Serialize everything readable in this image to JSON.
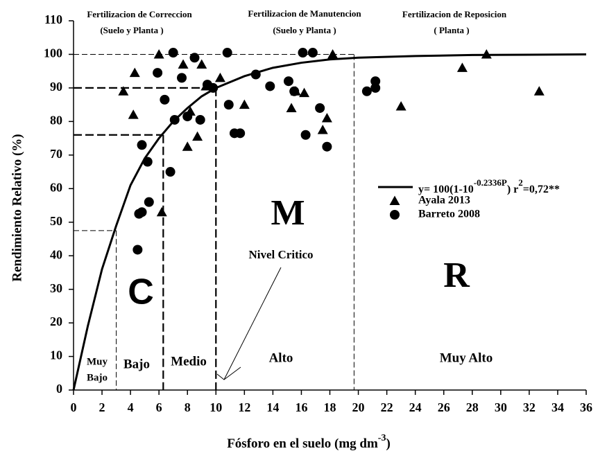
{
  "chart_data": {
    "type": "scatter",
    "y_label": "Rendimiento Relativo (%)",
    "x_label": {
      "main": "Fósforo en el suelo  (mg dm",
      "exp": "-3",
      "close": ")"
    },
    "xlim": [
      0,
      36
    ],
    "xticks": [
      0,
      2,
      4,
      6,
      8,
      10,
      12,
      14,
      16,
      18,
      20,
      22,
      24,
      26,
      28,
      30,
      32,
      34,
      36
    ],
    "ylim": [
      0,
      110
    ],
    "yticks": [
      0,
      10,
      20,
      30,
      40,
      50,
      60,
      70,
      80,
      90,
      100,
      110
    ],
    "grid": false,
    "series": [
      {
        "name": "Ayala 2013",
        "marker": "triangle",
        "color": "#000000",
        "x": [
          3.5,
          4.3,
          4.2,
          6,
          6.2,
          7.7,
          8,
          8.2,
          8.7,
          9,
          9.3,
          10.3,
          12,
          15.3,
          15.6,
          16.2,
          17.5,
          17.8,
          18.2,
          23,
          27.3,
          29,
          32.7
        ],
        "values": [
          89,
          94.5,
          82,
          100,
          53,
          97,
          72.5,
          83,
          75.5,
          97,
          90.5,
          93,
          85,
          84,
          89,
          88.5,
          77.5,
          81,
          100,
          84.5,
          96,
          100,
          89
        ]
      },
      {
        "name": "Barreto 2008",
        "marker": "circle",
        "color": "#000000",
        "x": [
          4.5,
          4.6,
          4.8,
          4.8,
          5.2,
          5.3,
          5.9,
          6.4,
          6.8,
          7.0,
          7.1,
          7.6,
          8.0,
          8.5,
          8.9,
          9.4,
          9.8,
          10.8,
          10.9,
          11.3,
          11.7,
          12.8,
          13.8,
          15.1,
          15.5,
          16.1,
          16.3,
          16.8,
          17.3,
          17.8,
          20.6,
          21.2,
          21.2
        ],
        "values": [
          41.8,
          52.5,
          53,
          73,
          68,
          56,
          94.5,
          86.5,
          65,
          100.5,
          80.5,
          93,
          81.5,
          99,
          80.5,
          91,
          90,
          100.5,
          85,
          76.5,
          76.5,
          94,
          90.5,
          92,
          89,
          100.5,
          76,
          100.5,
          84,
          72.5,
          89,
          92,
          90
        ]
      }
    ],
    "fit": {
      "color": "#000000",
      "legend": {
        "base": "y= 100(1-10",
        "exp": "-0.2336P",
        "r": ") r",
        "r_exp": "2",
        "rest": "=0,72**"
      },
      "x": [
        0,
        1,
        2,
        3,
        4,
        5,
        6,
        7,
        8,
        9,
        10,
        12,
        14,
        16,
        18,
        20,
        24,
        28,
        36
      ],
      "values": [
        0,
        19,
        36,
        49,
        61,
        69,
        75,
        80,
        84,
        87.5,
        90,
        93.5,
        96,
        97.5,
        98.5,
        99,
        99.5,
        99.8,
        100
      ]
    },
    "reference_lines": [
      {
        "x": 3,
        "y": 47.5
      },
      {
        "x": 6.3,
        "y": 76
      },
      {
        "x": 10,
        "y": 90
      },
      {
        "x": 19.7,
        "y": 100
      }
    ],
    "annotations": [
      {
        "text": "Fertilizacion de Correccion"
      },
      {
        "text": "(Suelo y Planta )"
      },
      {
        "text": "Fertilizacion de Manutencion"
      },
      {
        "text": "(Suelo y Planta )"
      },
      {
        "text": "Fertilizacion de Reposicion"
      },
      {
        "text": "( Planta )"
      },
      {
        "text": "C"
      },
      {
        "text": "M"
      },
      {
        "text": "R"
      },
      {
        "text": "Muy"
      },
      {
        "text": "Bajo"
      },
      {
        "text": "Bajo"
      },
      {
        "text": "Medio"
      },
      {
        "text": "Alto"
      },
      {
        "text": "Muy Alto"
      },
      {
        "text": "Nivel Critico"
      }
    ]
  }
}
